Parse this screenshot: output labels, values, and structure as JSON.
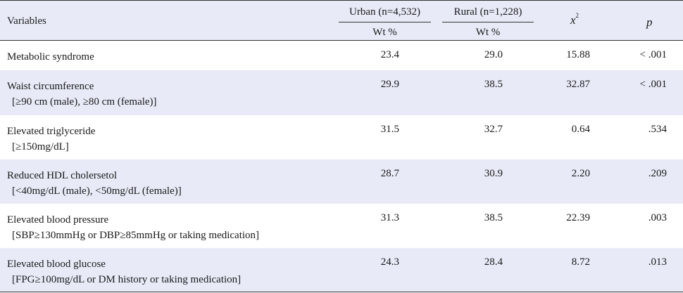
{
  "header": {
    "variables": "Variables",
    "urban": "Urban (n=4,532)",
    "rural": "Rural (n=1,228)",
    "urban_unit": "Wt %",
    "rural_unit": "Wt %",
    "chi": "x",
    "chi_sup": "2",
    "p": "p"
  },
  "rows": [
    {
      "label": "Metabolic syndrome",
      "sub": "",
      "urban": "23.4",
      "rural": "29.0",
      "chi2": "15.88",
      "p": "< .001"
    },
    {
      "label": "Waist circumference",
      "sub": "[≥90 cm (male), ≥80 cm (female)]",
      "urban": "29.9",
      "rural": "38.5",
      "chi2": "32.87",
      "p": "< .001"
    },
    {
      "label": "Elevated triglyceride",
      "sub": "[≥150mg/dL]",
      "urban": "31.5",
      "rural": "32.7",
      "chi2": "0.64",
      "p": ".534"
    },
    {
      "label": "Reduced HDL cholersetol",
      "sub": "[<40mg/dL (male), <50mg/dL (female)]",
      "urban": "28.7",
      "rural": "30.9",
      "chi2": "2.20",
      "p": ".209"
    },
    {
      "label": "Elevated blood pressure",
      "sub": "[SBP≥130mmHg or DBP≥85mmHg or taking medication]",
      "urban": "31.3",
      "rural": "38.5",
      "chi2": "22.39",
      "p": ".003"
    },
    {
      "label": "Elevated blood glucose",
      "sub": "[FPG≥100mg/dL or DM history or taking medication]",
      "urban": "24.3",
      "rural": "28.4",
      "chi2": "8.72",
      "p": ".013"
    }
  ]
}
